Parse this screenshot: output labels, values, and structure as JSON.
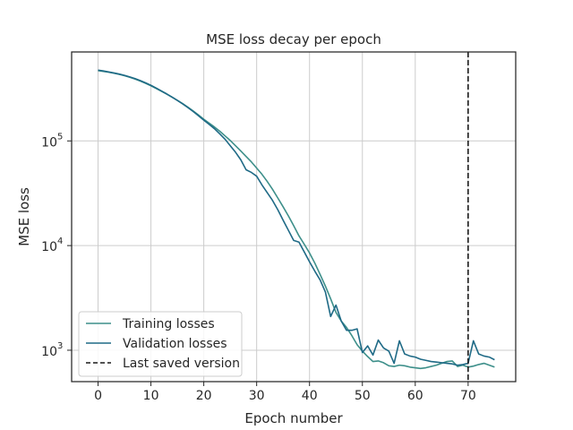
{
  "chart_data": {
    "type": "line",
    "title": "MSE loss decay per epoch",
    "xlabel": "Epoch number",
    "ylabel": "MSE loss",
    "xlim": [
      -5,
      79
    ],
    "ylim_log10": [
      2.7,
      5.85
    ],
    "yscale": "log",
    "grid": true,
    "legend_position": "lower-left",
    "xticks": [
      0,
      10,
      20,
      30,
      40,
      50,
      60,
      70
    ],
    "yticks": [
      {
        "exp": 3,
        "base": "10",
        "sup": "3"
      },
      {
        "exp": 4,
        "base": "10",
        "sup": "4"
      },
      {
        "exp": 5,
        "base": "10",
        "sup": "5"
      }
    ],
    "series": [
      {
        "name": "Training losses",
        "color": "#3d8f8a",
        "values": [
          470000,
          462000,
          454000,
          444000,
          433000,
          420000,
          406000,
          390000,
          373000,
          355000,
          336000,
          317000,
          298000,
          280000,
          262000,
          244000,
          227000,
          210000,
          193000,
          177000,
          161000,
          148000,
          136000,
          124000,
          112000,
          101000,
          90000,
          80000,
          71000,
          63000,
          55000,
          48000,
          41000,
          34500,
          28500,
          23500,
          19200,
          15500,
          12400,
          10300,
          8500,
          6800,
          5300,
          4100,
          3100,
          2300,
          1900,
          1650,
          1380,
          1130,
          980,
          870,
          780,
          790,
          760,
          710,
          700,
          720,
          710,
          690,
          680,
          670,
          680,
          700,
          720,
          750,
          780,
          790,
          700,
          720,
          690,
          705,
          730,
          750,
          720,
          690
        ]
      },
      {
        "name": "Validation losses",
        "color": "#1f6a86",
        "values": [
          475000,
          466000,
          456000,
          446000,
          435000,
          423000,
          409000,
          394000,
          377000,
          359000,
          340000,
          320000,
          300000,
          281000,
          262000,
          244000,
          226000,
          208000,
          191000,
          174000,
          158000,
          144000,
          131000,
          117000,
          104000,
          90000,
          78000,
          66000,
          53000,
          50000,
          46000,
          38000,
          32000,
          27000,
          22000,
          17500,
          14000,
          11200,
          10800,
          8700,
          7000,
          5700,
          4700,
          3600,
          2100,
          2700,
          1900,
          1550,
          1550,
          1600,
          950,
          1100,
          900,
          1250,
          1050,
          980,
          750,
          1230,
          920,
          880,
          860,
          820,
          800,
          780,
          770,
          760,
          750,
          740,
          720,
          730,
          750,
          1230,
          920,
          880,
          860,
          810
        ]
      }
    ],
    "vline": {
      "x": 70,
      "name": "Last saved version",
      "color": "#1a1a1a"
    }
  }
}
